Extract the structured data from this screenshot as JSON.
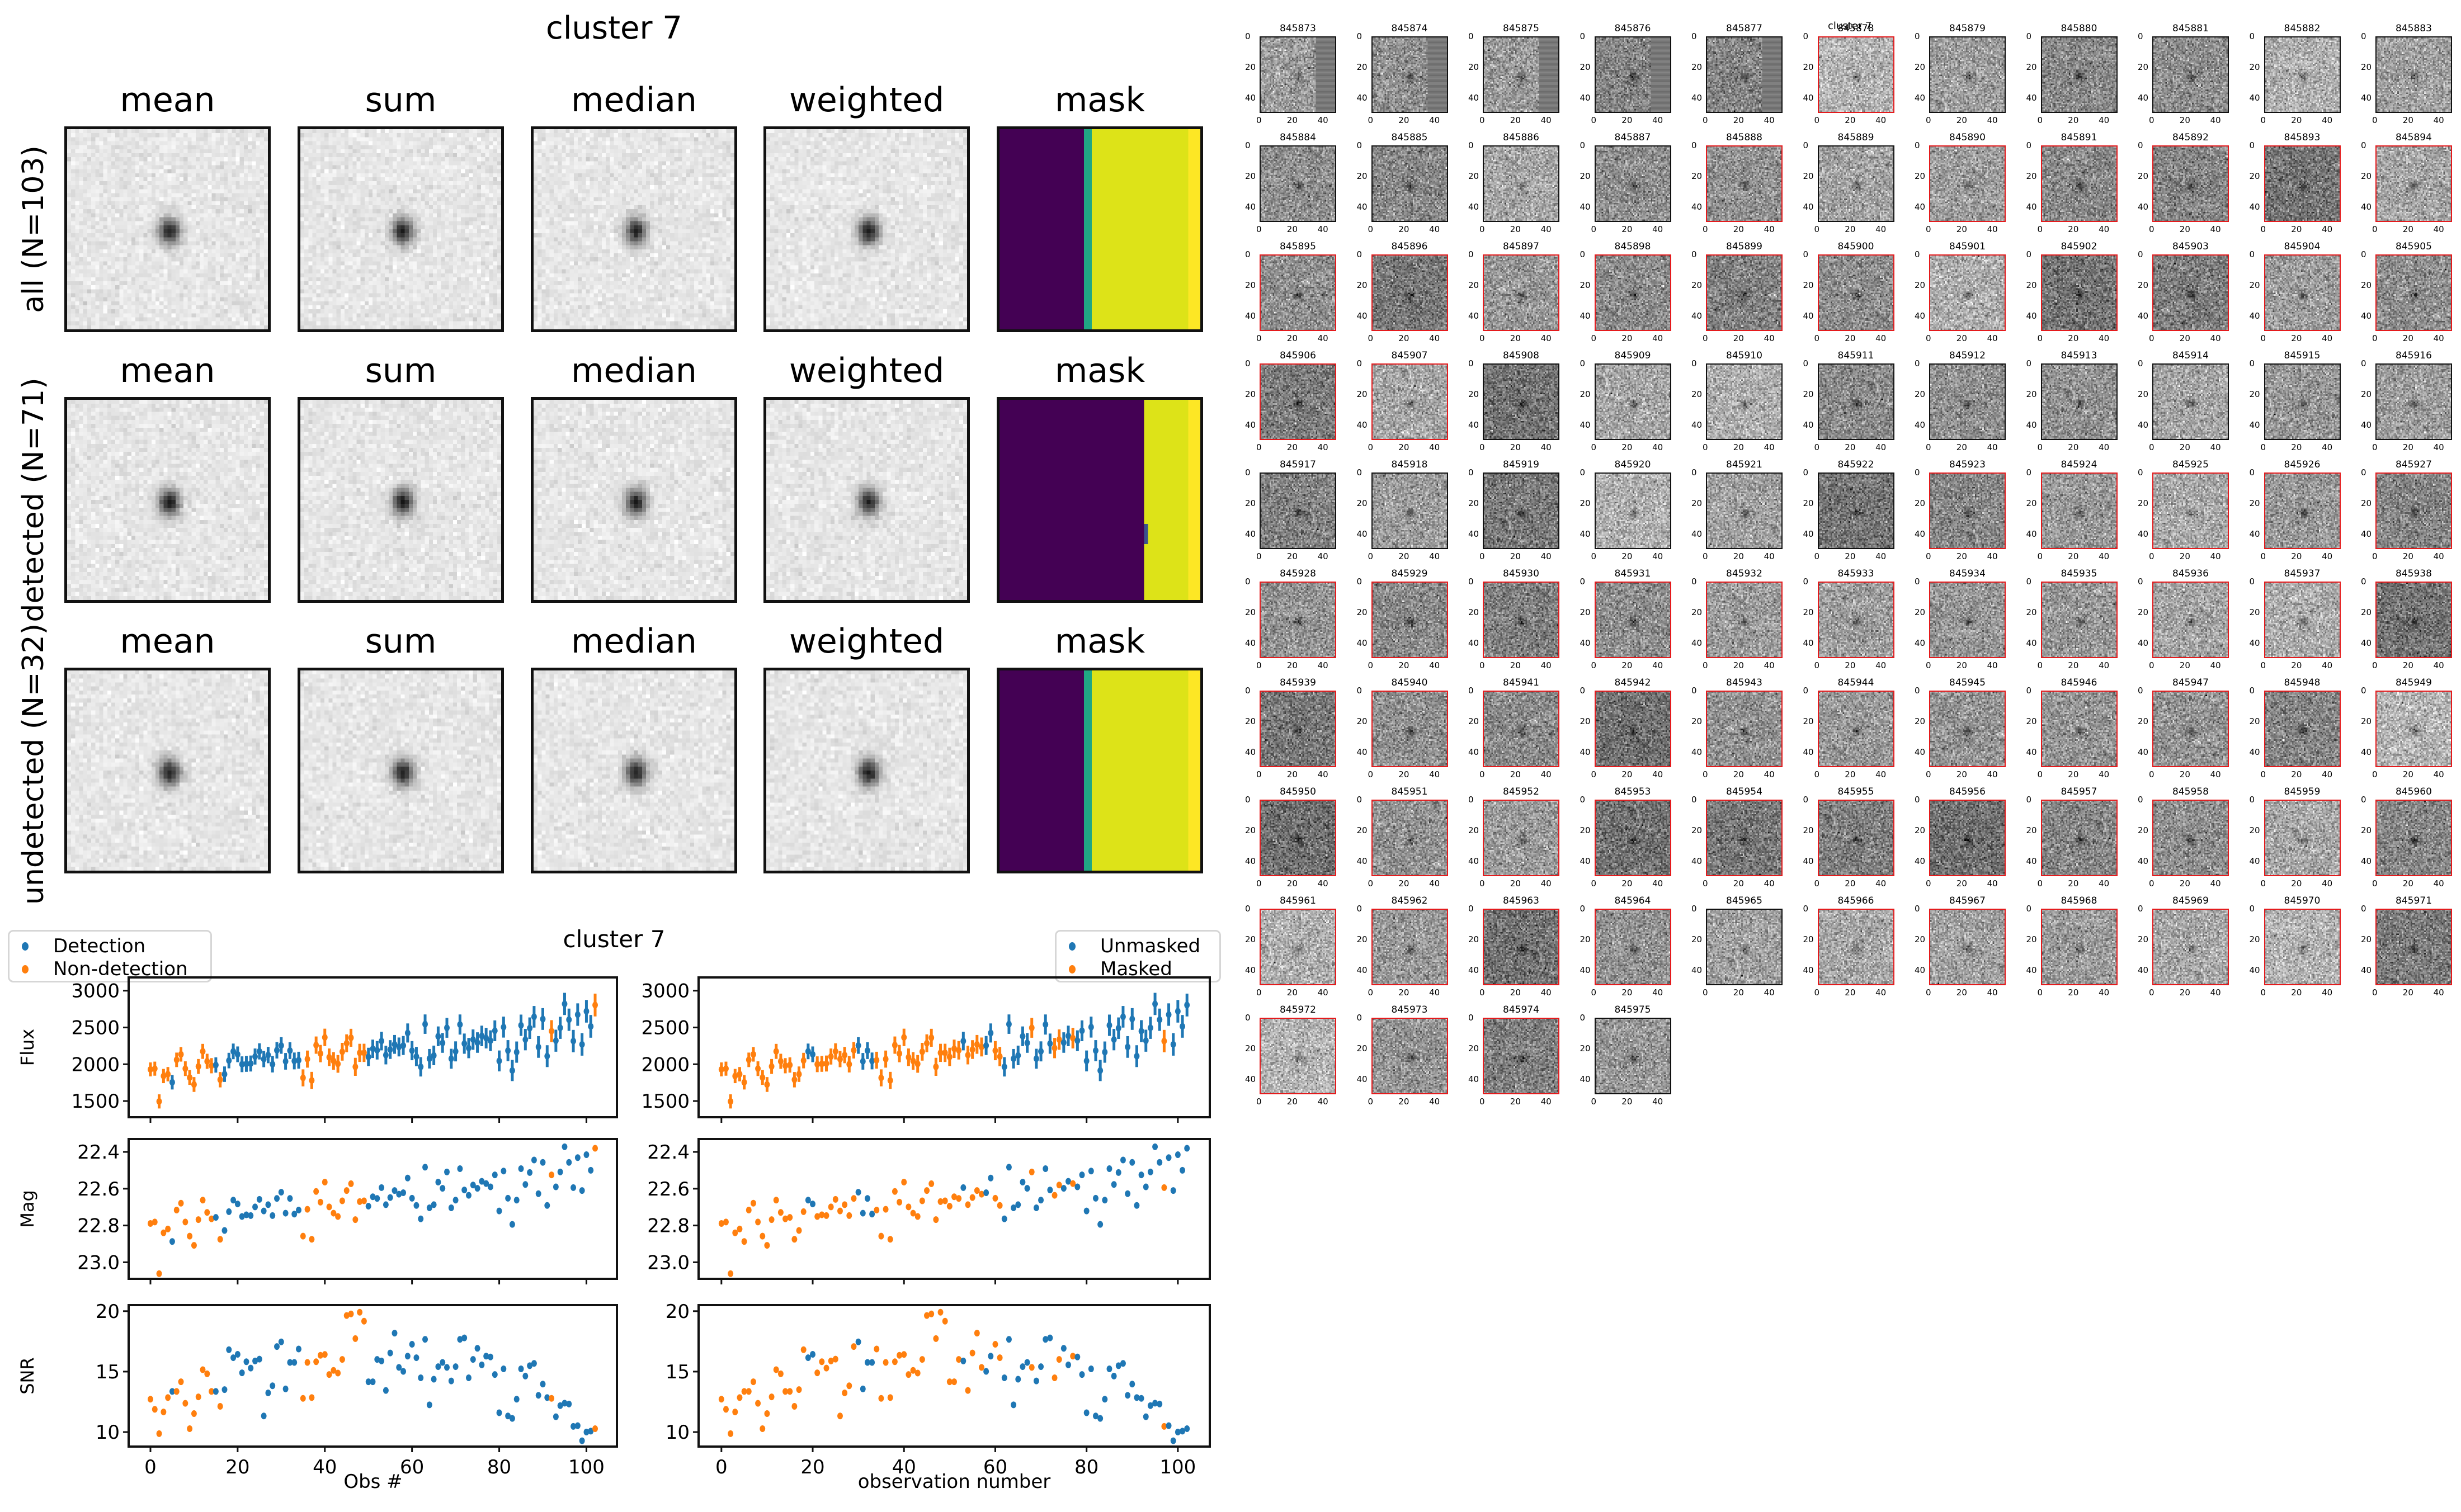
{
  "stack_figure": {
    "title": "cluster 7",
    "column_titles": [
      "mean",
      "sum",
      "median",
      "weighted",
      "mask"
    ],
    "rows": [
      {
        "label": "all (N=103)",
        "mask_split": 0.42,
        "mask_stripe": true
      },
      {
        "label": "detected (N=71)",
        "mask_split": 0.72,
        "mask_stripe": false
      },
      {
        "label": "undetected (N=32)",
        "mask_split": 0.42,
        "mask_stripe": true
      }
    ],
    "mask_colors": {
      "low": "#440154",
      "mid": "#21a784",
      "high": "#dde318",
      "edge": "#fde725"
    }
  },
  "lightcurve_figure": {
    "title": "cluster 7",
    "left_legend": [
      "Detection",
      "Non-detection"
    ],
    "right_legend": [
      "Unmasked",
      "Masked"
    ],
    "left_xlabel": "Obs #",
    "right_xlabel": "observation number",
    "colors": {
      "blue": "#1f77b4",
      "orange": "#ff7f0e"
    }
  },
  "chart_data": [
    {
      "type": "scatter",
      "title": "cluster 7",
      "panel": "Flux (detection coloring)",
      "xlabel": "",
      "ylabel": "Flux",
      "xlim": [
        -5,
        107
      ],
      "ylim": [
        1280,
        3180
      ],
      "yticks": [
        1500,
        2000,
        2500,
        3000
      ],
      "xticks": [
        0,
        20,
        40,
        60,
        80,
        100
      ],
      "error_bars": true,
      "legend": {
        "entries": [
          "Detection",
          "Non-detection"
        ],
        "placement": "upper-left-outside"
      }
    },
    {
      "type": "scatter",
      "panel": "Mag (detection coloring)",
      "ylabel": "Mag",
      "ylim": [
        23.09,
        22.33
      ],
      "inverted_y": true,
      "yticks": [
        22.4,
        22.6,
        22.8,
        23.0
      ]
    },
    {
      "type": "scatter",
      "panel": "SNR (detection coloring)",
      "ylabel": "SNR",
      "xlabel": "Obs #",
      "ylim": [
        8.8,
        20.5
      ],
      "yticks": [
        10,
        15,
        20
      ]
    },
    {
      "type": "scatter",
      "panel": "Flux / Mag / SNR (mask coloring)",
      "xlabel": "observation number",
      "legend": {
        "entries": [
          "Unmasked",
          "Masked"
        ],
        "placement": "upper-right-outside"
      }
    }
  ],
  "series": {
    "obs": [
      0,
      1,
      2,
      3,
      4,
      5,
      6,
      7,
      8,
      9,
      10,
      11,
      12,
      13,
      14,
      15,
      16,
      17,
      18,
      19,
      20,
      21,
      22,
      23,
      24,
      25,
      26,
      27,
      28,
      29,
      30,
      31,
      32,
      33,
      34,
      35,
      36,
      37,
      38,
      39,
      40,
      41,
      42,
      43,
      44,
      45,
      46,
      47,
      48,
      49,
      50,
      51,
      52,
      53,
      54,
      55,
      56,
      57,
      58,
      59,
      60,
      61,
      62,
      63,
      64,
      65,
      66,
      67,
      68,
      69,
      70,
      71,
      72,
      73,
      74,
      75,
      76,
      77,
      78,
      79,
      80,
      81,
      82,
      83,
      84,
      85,
      86,
      87,
      88,
      89,
      90,
      91,
      92,
      93,
      94,
      95,
      96,
      97,
      98,
      99,
      100,
      101,
      102
    ],
    "flux": [
      1930,
      1940,
      1495,
      1840,
      1865,
      1755,
      2060,
      2135,
      1940,
      1820,
      1725,
      1970,
      2175,
      2040,
      1980,
      1990,
      1790,
      1865,
      2050,
      2175,
      2135,
      2000,
      2005,
      2010,
      2105,
      2175,
      2070,
      2125,
      2000,
      2190,
      2255,
      2040,
      2185,
      2045,
      2055,
      1815,
      2070,
      1780,
      2260,
      2145,
      2365,
      2095,
      2045,
      2005,
      2170,
      2285,
      2360,
      1965,
      2155,
      2155,
      2100,
      2210,
      2190,
      2315,
      2125,
      2200,
      2270,
      2235,
      2255,
      2425,
      2185,
      2105,
      1965,
      2545,
      2075,
      2120,
      2380,
      2290,
      2495,
      2075,
      2175,
      2540,
      2280,
      2220,
      2335,
      2295,
      2385,
      2355,
      2320,
      2455,
      2045,
      2505,
      2185,
      1915,
      2165,
      2530,
      2335,
      2490,
      2645,
      2235,
      2615,
      2110,
      2450,
      2320,
      2495,
      2820,
      2605,
      2315,
      2675,
      2270,
      2720,
      2515,
      2805
    ],
    "mag": [
      22.789,
      22.781,
      23.062,
      22.84,
      22.819,
      22.887,
      22.716,
      22.679,
      22.781,
      22.858,
      22.908,
      22.768,
      22.662,
      22.729,
      22.764,
      22.756,
      22.875,
      22.827,
      22.725,
      22.662,
      22.683,
      22.751,
      22.742,
      22.746,
      22.699,
      22.658,
      22.721,
      22.687,
      22.746,
      22.653,
      22.619,
      22.733,
      22.653,
      22.738,
      22.716,
      22.858,
      22.712,
      22.875,
      22.615,
      22.673,
      22.564,
      22.699,
      22.733,
      22.751,
      22.666,
      22.61,
      22.573,
      22.768,
      22.67,
      22.666,
      22.695,
      22.644,
      22.653,
      22.594,
      22.687,
      22.648,
      22.61,
      22.63,
      22.622,
      22.542,
      22.652,
      22.691,
      22.764,
      22.483,
      22.704,
      22.687,
      22.564,
      22.598,
      22.509,
      22.704,
      22.662,
      22.491,
      22.607,
      22.636,
      22.58,
      22.598,
      22.56,
      22.572,
      22.59,
      22.525,
      22.721,
      22.504,
      22.652,
      22.794,
      22.662,
      22.491,
      22.577,
      22.512,
      22.444,
      22.627,
      22.457,
      22.691,
      22.525,
      22.59,
      22.509,
      22.372,
      22.457,
      22.594,
      22.431,
      22.61,
      22.415,
      22.5,
      22.38
    ],
    "snr": [
      12.72,
      11.88,
      9.87,
      11.66,
      12.85,
      13.36,
      13.36,
      14.16,
      12.38,
      10.28,
      11.53,
      12.91,
      15.16,
      14.82,
      13.36,
      13.36,
      12.13,
      13.51,
      16.81,
      16.15,
      16.43,
      14.9,
      15.82,
      15.29,
      15.88,
      16.03,
      11.33,
      13.24,
      13.83,
      17.07,
      17.46,
      13.57,
      15.76,
      15.76,
      16.87,
      12.79,
      15.76,
      12.85,
      15.82,
      16.35,
      16.42,
      14.76,
      15.1,
      14.88,
      16.01,
      19.64,
      19.77,
      17.73,
      19.91,
      19.17,
      14.16,
      14.16,
      16.01,
      15.88,
      13.44,
      16.54,
      18.18,
      15.35,
      15.02,
      16.28,
      17.26,
      16.15,
      14.49,
      17.67,
      12.25,
      14.37,
      15.41,
      15.76,
      15.35,
      14.23,
      15.41,
      17.67,
      17.79,
      14.49,
      16.01,
      16.93,
      15.56,
      16.28,
      16.21,
      14.76,
      11.6,
      15.23,
      11.33,
      11.13,
      12.72,
      15.23,
      14.63,
      15.49,
      15.68,
      13.04,
      13.97,
      12.85,
      12.79,
      11.27,
      12.19,
      12.39,
      12.32,
      10.47,
      10.53,
      9.28,
      10.0,
      10.08,
      10.28
    ],
    "non_detection_obs": [
      0,
      1,
      2,
      3,
      4,
      6,
      7,
      8,
      9,
      10,
      11,
      12,
      13,
      14,
      16,
      35,
      36,
      37,
      38,
      39,
      40,
      41,
      42,
      43,
      44,
      45,
      46,
      47,
      48,
      49,
      92,
      102
    ],
    "masked_obs": [
      0,
      1,
      2,
      3,
      4,
      5,
      6,
      7,
      8,
      9,
      10,
      11,
      12,
      13,
      14,
      15,
      16,
      17,
      18,
      21,
      22,
      23,
      24,
      25,
      26,
      27,
      28,
      29,
      34,
      35,
      36,
      37,
      38,
      39,
      40,
      41,
      42,
      43,
      44,
      45,
      46,
      47,
      48,
      49,
      50,
      51,
      52,
      54,
      55,
      56,
      57,
      60,
      61,
      68,
      73,
      74,
      77,
      97
    ]
  },
  "thumbnail_grid": {
    "title": "cluster 7",
    "columns": 11,
    "tick_labels": [
      "0",
      "20",
      "40"
    ],
    "items": [
      {
        "id": "845873",
        "masked": false
      },
      {
        "id": "845874",
        "masked": false
      },
      {
        "id": "845875",
        "masked": false
      },
      {
        "id": "845876",
        "masked": false
      },
      {
        "id": "845877",
        "masked": false
      },
      {
        "id": "845878",
        "masked": true
      },
      {
        "id": "845879",
        "masked": false
      },
      {
        "id": "845880",
        "masked": false
      },
      {
        "id": "845881",
        "masked": false
      },
      {
        "id": "845882",
        "masked": false
      },
      {
        "id": "845883",
        "masked": false
      },
      {
        "id": "845884",
        "masked": false
      },
      {
        "id": "845885",
        "masked": false
      },
      {
        "id": "845886",
        "masked": false
      },
      {
        "id": "845887",
        "masked": false
      },
      {
        "id": "845888",
        "masked": true
      },
      {
        "id": "845889",
        "masked": false
      },
      {
        "id": "845890",
        "masked": true
      },
      {
        "id": "845891",
        "masked": true
      },
      {
        "id": "845892",
        "masked": true
      },
      {
        "id": "845893",
        "masked": true
      },
      {
        "id": "845894",
        "masked": true
      },
      {
        "id": "845895",
        "masked": true
      },
      {
        "id": "845896",
        "masked": true
      },
      {
        "id": "845897",
        "masked": true
      },
      {
        "id": "845898",
        "masked": true
      },
      {
        "id": "845899",
        "masked": true
      },
      {
        "id": "845900",
        "masked": true
      },
      {
        "id": "845901",
        "masked": true
      },
      {
        "id": "845902",
        "masked": true
      },
      {
        "id": "845903",
        "masked": true
      },
      {
        "id": "845904",
        "masked": true
      },
      {
        "id": "845905",
        "masked": true
      },
      {
        "id": "845906",
        "masked": true
      },
      {
        "id": "845907",
        "masked": true
      },
      {
        "id": "845908",
        "masked": false
      },
      {
        "id": "845909",
        "masked": false
      },
      {
        "id": "845910",
        "masked": false
      },
      {
        "id": "845911",
        "masked": false
      },
      {
        "id": "845912",
        "masked": false
      },
      {
        "id": "845913",
        "masked": false
      },
      {
        "id": "845914",
        "masked": false
      },
      {
        "id": "845915",
        "masked": false
      },
      {
        "id": "845916",
        "masked": false
      },
      {
        "id": "845917",
        "masked": false
      },
      {
        "id": "845918",
        "masked": false
      },
      {
        "id": "845919",
        "masked": false
      },
      {
        "id": "845920",
        "masked": false
      },
      {
        "id": "845921",
        "masked": false
      },
      {
        "id": "845922",
        "masked": false
      },
      {
        "id": "845923",
        "masked": true
      },
      {
        "id": "845924",
        "masked": true
      },
      {
        "id": "845925",
        "masked": true
      },
      {
        "id": "845926",
        "masked": true
      },
      {
        "id": "845927",
        "masked": true
      },
      {
        "id": "845928",
        "masked": true
      },
      {
        "id": "845929",
        "masked": true
      },
      {
        "id": "845930",
        "masked": true
      },
      {
        "id": "845931",
        "masked": true
      },
      {
        "id": "845932",
        "masked": true
      },
      {
        "id": "845933",
        "masked": true
      },
      {
        "id": "845934",
        "masked": true
      },
      {
        "id": "845935",
        "masked": true
      },
      {
        "id": "845936",
        "masked": true
      },
      {
        "id": "845937",
        "masked": true
      },
      {
        "id": "845938",
        "masked": true
      },
      {
        "id": "845939",
        "masked": true
      },
      {
        "id": "845940",
        "masked": true
      },
      {
        "id": "845941",
        "masked": true
      },
      {
        "id": "845942",
        "masked": true
      },
      {
        "id": "845943",
        "masked": true
      },
      {
        "id": "845944",
        "masked": true
      },
      {
        "id": "845945",
        "masked": true
      },
      {
        "id": "845946",
        "masked": true
      },
      {
        "id": "845947",
        "masked": true
      },
      {
        "id": "845948",
        "masked": true
      },
      {
        "id": "845949",
        "masked": true
      },
      {
        "id": "845950",
        "masked": true
      },
      {
        "id": "845951",
        "masked": true
      },
      {
        "id": "845952",
        "masked": true
      },
      {
        "id": "845953",
        "masked": true
      },
      {
        "id": "845954",
        "masked": true
      },
      {
        "id": "845955",
        "masked": true
      },
      {
        "id": "845956",
        "masked": true
      },
      {
        "id": "845957",
        "masked": true
      },
      {
        "id": "845958",
        "masked": true
      },
      {
        "id": "845959",
        "masked": true
      },
      {
        "id": "845960",
        "masked": true
      },
      {
        "id": "845961",
        "masked": true
      },
      {
        "id": "845962",
        "masked": true
      },
      {
        "id": "845963",
        "masked": true
      },
      {
        "id": "845964",
        "masked": true
      },
      {
        "id": "845965",
        "masked": false
      },
      {
        "id": "845966",
        "masked": true
      },
      {
        "id": "845967",
        "masked": true
      },
      {
        "id": "845968",
        "masked": true
      },
      {
        "id": "845969",
        "masked": true
      },
      {
        "id": "845970",
        "masked": true
      },
      {
        "id": "845971",
        "masked": true
      },
      {
        "id": "845972",
        "masked": true
      },
      {
        "id": "845973",
        "masked": true
      },
      {
        "id": "845974",
        "masked": true
      },
      {
        "id": "845975",
        "masked": false
      }
    ]
  }
}
